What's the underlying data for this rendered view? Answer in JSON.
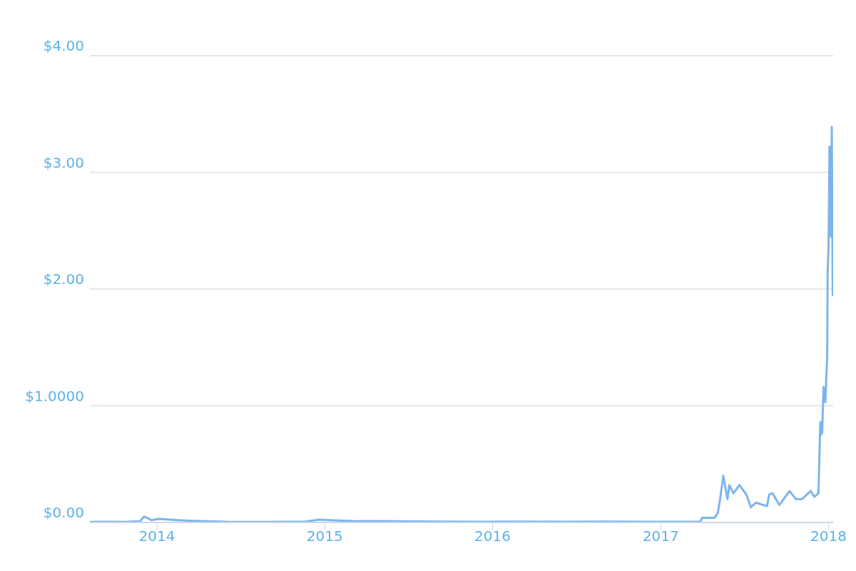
{
  "chart_data": {
    "type": "line",
    "x": [
      "2013-08-08",
      "2013-09-15",
      "2013-10-20",
      "2013-11-25",
      "2013-12-04",
      "2013-12-10",
      "2013-12-20",
      "2014-01-05",
      "2014-02-15",
      "2014-04-01",
      "2014-06-01",
      "2014-09-01",
      "2014-11-20",
      "2014-12-20",
      "2015-01-20",
      "2015-03-01",
      "2015-06-01",
      "2015-09-01",
      "2015-12-01",
      "2016-03-01",
      "2016-06-01",
      "2016-09-01",
      "2016-12-01",
      "2017-03-01",
      "2017-03-28",
      "2017-04-01",
      "2017-04-28",
      "2017-05-05",
      "2017-05-10",
      "2017-05-17",
      "2017-05-26",
      "2017-05-30",
      "2017-06-08",
      "2017-06-21",
      "2017-07-06",
      "2017-07-16",
      "2017-07-27",
      "2017-08-20",
      "2017-08-25",
      "2017-09-01",
      "2017-09-16",
      "2017-10-08",
      "2017-10-22",
      "2017-11-04",
      "2017-11-23",
      "2017-12-01",
      "2017-12-10",
      "2017-12-14",
      "2017-12-15",
      "2017-12-18",
      "2017-12-21",
      "2017-12-25",
      "2017-12-29",
      "2017-12-30",
      "2018-01-01",
      "2018-01-03",
      "2018-01-06",
      "2018-01-08",
      "2018-01-10"
    ],
    "series": [
      {
        "color": "#7cb5ec",
        "values": [
          0.005,
          0.006,
          0.005,
          0.01,
          0.05,
          0.04,
          0.02,
          0.03,
          0.02,
          0.012,
          0.006,
          0.005,
          0.008,
          0.024,
          0.018,
          0.012,
          0.01,
          0.008,
          0.006,
          0.008,
          0.006,
          0.007,
          0.006,
          0.006,
          0.008,
          0.04,
          0.04,
          0.08,
          0.2,
          0.4,
          0.2,
          0.32,
          0.25,
          0.32,
          0.24,
          0.13,
          0.17,
          0.14,
          0.24,
          0.25,
          0.15,
          0.27,
          0.2,
          0.2,
          0.27,
          0.22,
          0.25,
          0.86,
          0.75,
          0.77,
          1.16,
          1.03,
          1.43,
          2.15,
          2.37,
          3.22,
          2.45,
          3.39,
          1.94
        ]
      }
    ],
    "xlim": [
      "2013-08-08",
      "2018-01-11"
    ],
    "xticks": [
      "2014",
      "2015",
      "2016",
      "2017",
      "2018"
    ],
    "ylim": [
      0,
      4
    ],
    "yticks": [
      {
        "value": 0,
        "label": "$0.00"
      },
      {
        "value": 1,
        "label": "$1.0000"
      },
      {
        "value": 2,
        "label": "$2.00"
      },
      {
        "value": 3,
        "label": "$3.00"
      },
      {
        "value": 4,
        "label": "$4.00"
      }
    ],
    "grid": "y",
    "marker": "none",
    "line_style": "solid",
    "legend": false
  }
}
